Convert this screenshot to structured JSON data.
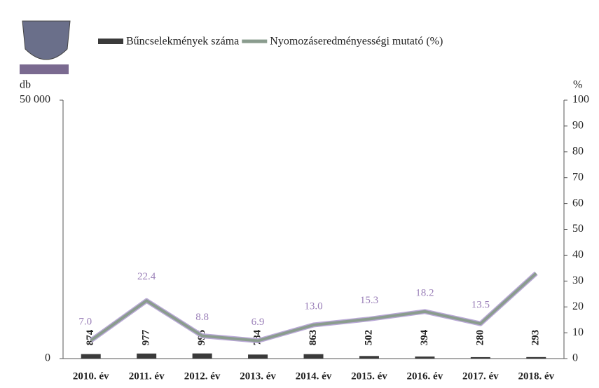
{
  "chart_data": {
    "type": "bar-line",
    "categories": [
      "2010. év",
      "2011. év",
      "2012. év",
      "2013. év",
      "2014. év",
      "2015. év",
      "2016. év",
      "2017. év",
      "2018. év"
    ],
    "ylabel": "db",
    "y2label": "%",
    "ylim": [
      0,
      50000
    ],
    "yticks": [
      0,
      {
        "value": 50000,
        "label": "50 000"
      }
    ],
    "y2lim": [
      0,
      100
    ],
    "y2ticks": [
      0,
      10,
      20,
      30,
      40,
      50,
      60,
      70,
      80,
      90,
      100
    ],
    "legend": "top",
    "series": [
      {
        "name": "Bűncselekmények száma",
        "type": "bar",
        "color": "#3a3a3a",
        "values": [
          874,
          977,
          995,
          784,
          863,
          502,
          394,
          280,
          293
        ]
      },
      {
        "name": "Nyomozáseredményességi mutató (%)",
        "type": "line",
        "axis": "y2",
        "color": "#8a9c8e",
        "values": [
          7.0,
          22.4,
          8.8,
          6.9,
          13.0,
          15.3,
          18.2,
          13.5,
          33
        ],
        "value_labels": [
          "7.0",
          "22.4",
          "8.8",
          "6.9",
          "13.0",
          "15.3",
          "18.2",
          "13.5",
          null
        ]
      }
    ]
  }
}
